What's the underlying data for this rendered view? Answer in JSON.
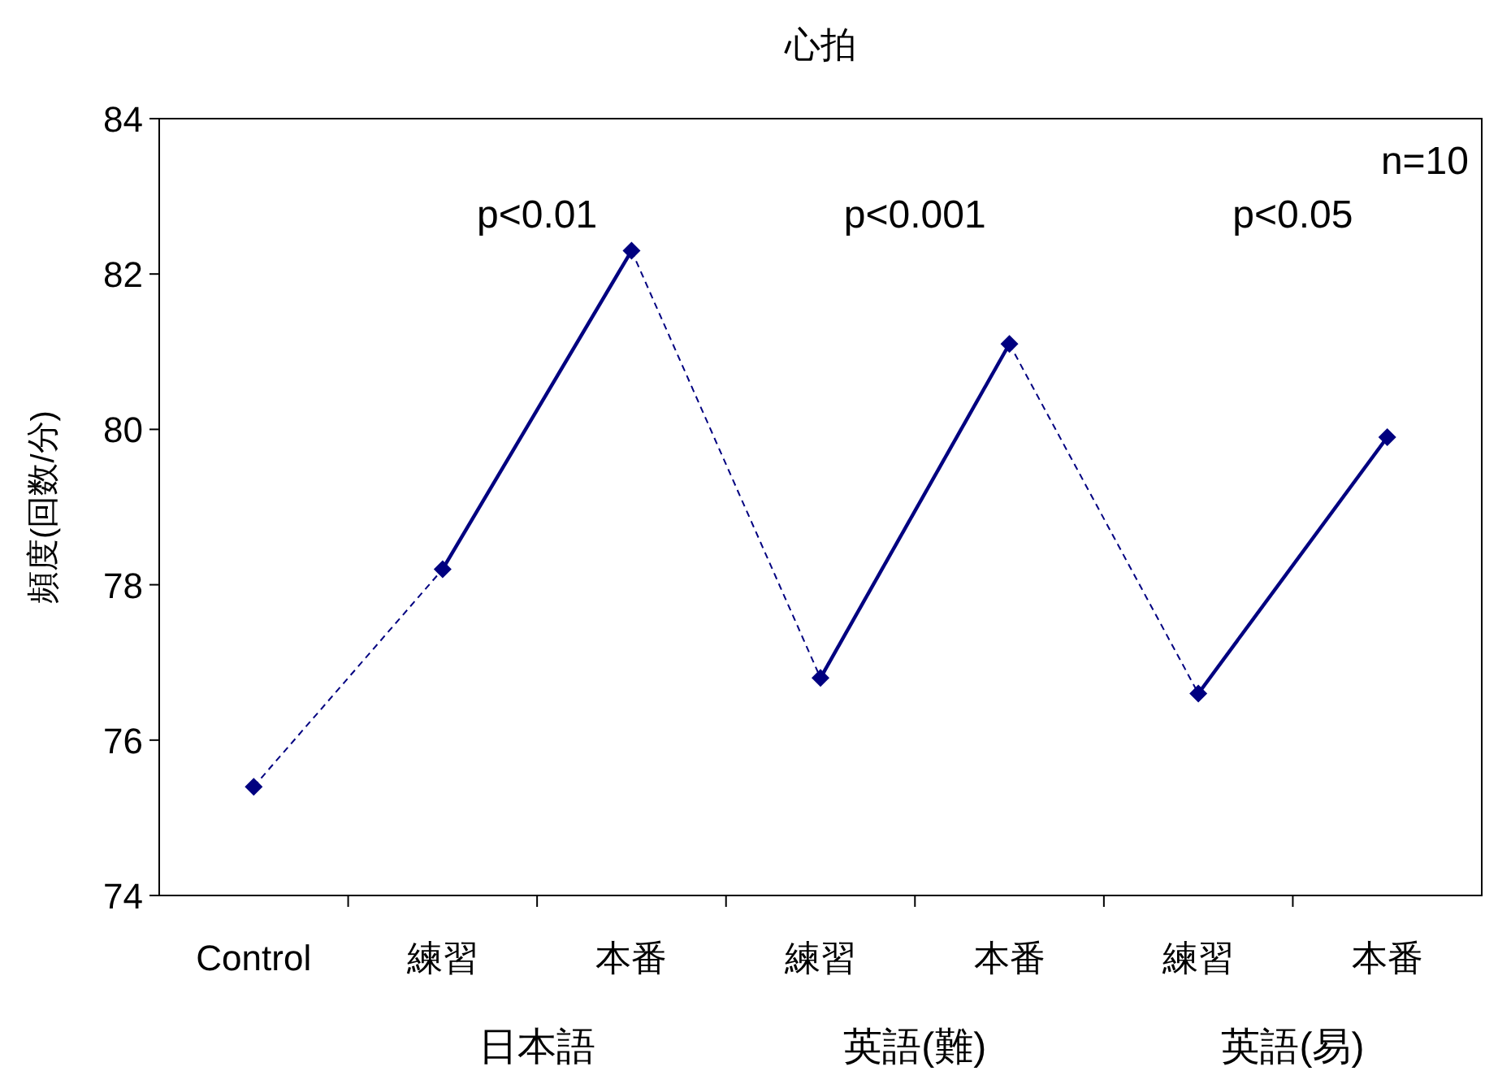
{
  "chart_data": {
    "type": "line",
    "title": "心拍",
    "ylabel": "頻度(回数/分)",
    "categories": [
      "Control",
      "練習",
      "本番",
      "練習",
      "本番",
      "練習",
      "本番"
    ],
    "ylim": [
      74,
      84
    ],
    "yticks": [
      74,
      76,
      78,
      80,
      82,
      84
    ],
    "annotations": [
      "p<0.01",
      "p<0.001",
      "p<0.05",
      "n=10",
      "日本語",
      "英語(難)",
      "英語(易)"
    ],
    "series": [
      {
        "type": "scatter",
        "color": "#000080",
        "marker": "diamond",
        "values": [
          75.4,
          78.2,
          82.3,
          76.8,
          81.1,
          76.6,
          79.9
        ]
      },
      {
        "color": "#000080",
        "line_style": "dashed",
        "marker": "none",
        "values": [
          75.4,
          78.2,
          null,
          null,
          null,
          null,
          null
        ]
      },
      {
        "color": "#000080",
        "line_style": "solid",
        "marker": "none",
        "values": [
          null,
          78.2,
          82.3,
          null,
          null,
          null,
          null
        ]
      },
      {
        "color": "#000080",
        "line_style": "dashed",
        "marker": "none",
        "values": [
          null,
          null,
          82.3,
          76.8,
          null,
          null,
          null
        ]
      },
      {
        "color": "#000080",
        "line_style": "solid",
        "marker": "none",
        "values": [
          null,
          null,
          null,
          76.8,
          81.1,
          null,
          null
        ]
      },
      {
        "color": "#000080",
        "line_style": "dashed",
        "marker": "none",
        "values": [
          null,
          null,
          null,
          null,
          81.1,
          76.6,
          null
        ]
      },
      {
        "color": "#000080",
        "line_style": "solid",
        "marker": "none",
        "values": [
          null,
          null,
          null,
          null,
          null,
          76.6,
          79.9
        ]
      }
    ]
  }
}
